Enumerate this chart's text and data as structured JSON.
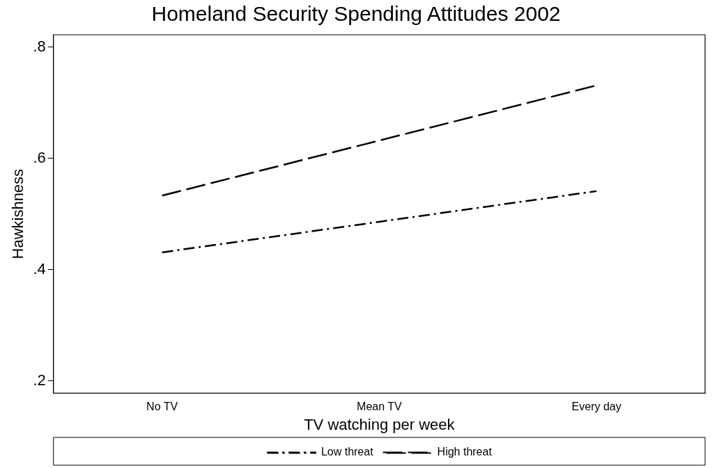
{
  "chart_data": {
    "type": "line",
    "title": "Homeland Security Spending Attitudes 2002",
    "xlabel": "TV watching per week",
    "ylabel": "Hawkishness",
    "categories": [
      "No TV",
      "Mean TV",
      "Every day"
    ],
    "series": [
      {
        "name": "Low threat",
        "color": "#000000",
        "values": [
          0.431,
          0.486,
          0.541
        ],
        "line_style": "dashdot"
      },
      {
        "name": "High threat",
        "color": "#000000",
        "values": [
          0.533,
          0.632,
          0.731
        ],
        "line_style": "dashed"
      }
    ],
    "ylim": [
      0.178,
      0.822
    ],
    "yticks": [
      {
        "value": 0.2,
        "label": ".2"
      },
      {
        "value": 0.4,
        "label": ".4"
      },
      {
        "value": 0.6,
        "label": ".6"
      },
      {
        "value": 0.8,
        "label": ".8"
      }
    ],
    "grid": false,
    "legend": "bottom",
    "marker": "none"
  }
}
